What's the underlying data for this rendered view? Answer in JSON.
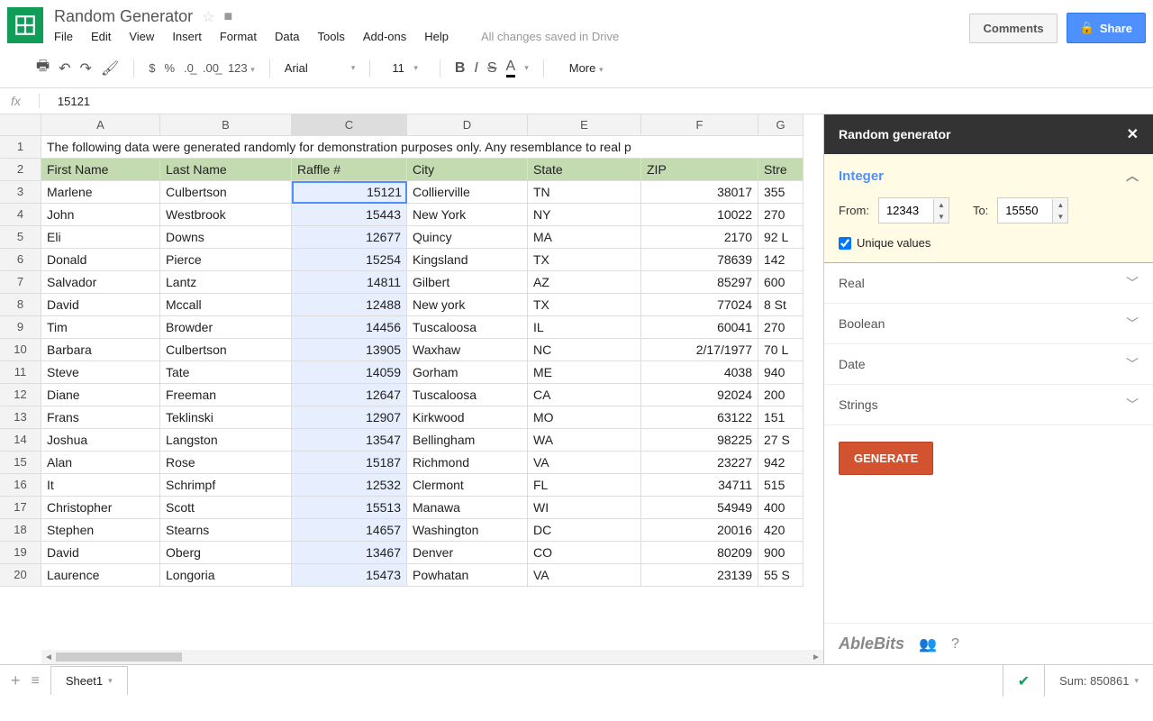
{
  "header": {
    "doc_title": "Random Generator",
    "menu": [
      "File",
      "Edit",
      "View",
      "Insert",
      "Format",
      "Data",
      "Tools",
      "Add-ons",
      "Help"
    ],
    "save_text": "All changes saved in Drive",
    "comments": "Comments",
    "share": "Share"
  },
  "toolbar": {
    "font": "Arial",
    "size": "11",
    "more": "More"
  },
  "formula": {
    "value": "15121"
  },
  "sheet": {
    "col_labels": [
      "A",
      "B",
      "C",
      "D",
      "E",
      "F",
      "G"
    ],
    "selected_col_index": 2,
    "row_count": 20,
    "row1_text": "The following data were generated randomly for demonstration purposes only. Any resemblance to real p",
    "header_row": [
      "First Name",
      "Last Name",
      "Raffle #",
      "City",
      "State",
      "ZIP",
      "Stre"
    ],
    "rows": [
      [
        "Marlene",
        "Culbertson",
        "15121",
        "Collierville",
        "TN",
        "38017",
        "355"
      ],
      [
        "John",
        "Westbrook",
        "15443",
        "New York",
        "NY",
        "10022",
        "270"
      ],
      [
        "Eli",
        "Downs",
        "12677",
        "Quincy",
        "MA",
        "2170",
        "92 L"
      ],
      [
        "Donald",
        "Pierce",
        "15254",
        "Kingsland",
        "TX",
        "78639",
        "142"
      ],
      [
        "Salvador",
        "Lantz",
        "14811",
        "Gilbert",
        "AZ",
        "85297",
        "600"
      ],
      [
        "David",
        "Mccall",
        "12488",
        "New york",
        "TX",
        "77024",
        "8 St"
      ],
      [
        "Tim",
        "Browder",
        "14456",
        "Tuscaloosa",
        "IL",
        "60041",
        "270"
      ],
      [
        "Barbara",
        "Culbertson",
        "13905",
        "Waxhaw",
        "NC",
        "2/17/1977",
        "70 L"
      ],
      [
        "Steve",
        "Tate",
        "14059",
        "Gorham",
        "ME",
        "4038",
        "940"
      ],
      [
        "Diane",
        "Freeman",
        "12647",
        "Tuscaloosa",
        "CA",
        "92024",
        "200"
      ],
      [
        "Frans",
        "Teklinski",
        "12907",
        "Kirkwood",
        "MO",
        "63122",
        "151"
      ],
      [
        "Joshua",
        "Langston",
        "13547",
        "Bellingham",
        "WA",
        "98225",
        "27 S"
      ],
      [
        "Alan",
        "Rose",
        "15187",
        "Richmond",
        "VA",
        "23227",
        "942"
      ],
      [
        "It",
        "Schrimpf",
        "12532",
        "Clermont",
        "FL",
        "34711",
        "515"
      ],
      [
        "Christopher",
        "Scott",
        "15513",
        "Manawa",
        "WI",
        "54949",
        "400"
      ],
      [
        "Stephen",
        "Stearns",
        "14657",
        "Washington",
        "DC",
        "20016",
        "420"
      ],
      [
        "David",
        "Oberg",
        "13467",
        "Denver",
        "CO",
        "80209",
        "900"
      ],
      [
        "Laurence",
        "Longoria",
        "15473",
        "Powhatan",
        "VA",
        "23139",
        "55 S"
      ]
    ],
    "selected_cell": {
      "row": 0,
      "col": 2
    }
  },
  "sidebar": {
    "title": "Random generator",
    "integer": {
      "title": "Integer",
      "from_label": "From:",
      "from_value": "12343",
      "to_label": "To:",
      "to_value": "15550",
      "unique_label": "Unique values",
      "unique_checked": true
    },
    "collapsed": [
      "Real",
      "Boolean",
      "Date",
      "Strings"
    ],
    "generate": "GENERATE",
    "footer_logo": "AbleBits"
  },
  "bottom": {
    "sheet_name": "Sheet1",
    "sum": "Sum: 850861"
  },
  "colors": {
    "brand_green": "#0f9d58",
    "share_blue": "#4d90fe",
    "header_green": "#c4dab0",
    "selection_blue": "#e7efff",
    "generate_red": "#d35230"
  }
}
